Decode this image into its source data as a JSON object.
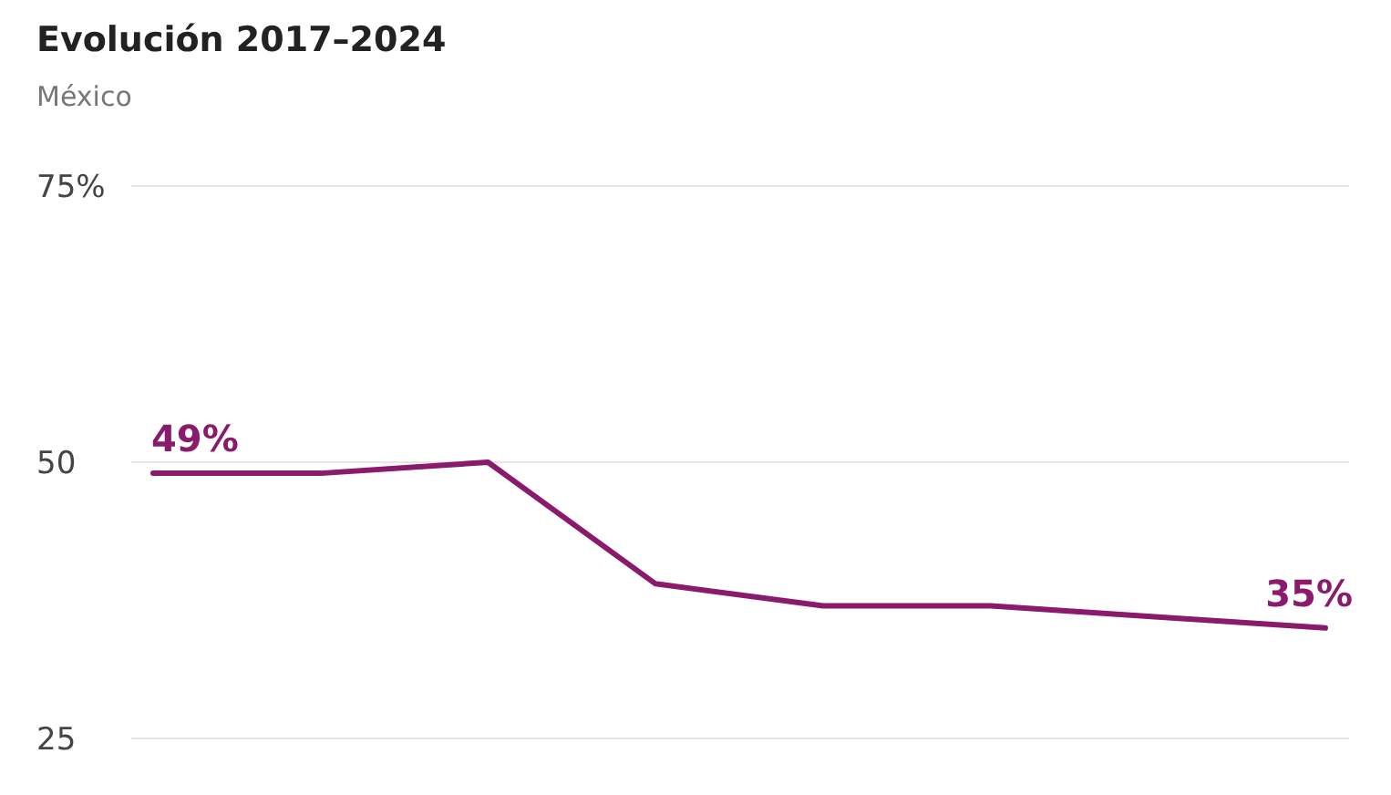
{
  "chart_data": {
    "type": "line",
    "title": "Evolución 2017–2024",
    "subtitle": "México",
    "categories": [
      null,
      null,
      null,
      null,
      null,
      null,
      null,
      null
    ],
    "series": [
      {
        "color": "#8a1a6c",
        "values": [
          49,
          49,
          50,
          39,
          37,
          37,
          36,
          35
        ],
        "value_labels": [
          "49%",
          null,
          null,
          null,
          null,
          null,
          null,
          "35%"
        ]
      }
    ],
    "ylim": [
      25,
      75
    ],
    "yticks": [
      {
        "value": 25,
        "label": "25"
      },
      {
        "value": 50,
        "label": "50"
      },
      {
        "value": 75,
        "label": "75%"
      }
    ],
    "grid": "y",
    "marker": "none",
    "line_style": "solid",
    "tick_labels": "y"
  }
}
